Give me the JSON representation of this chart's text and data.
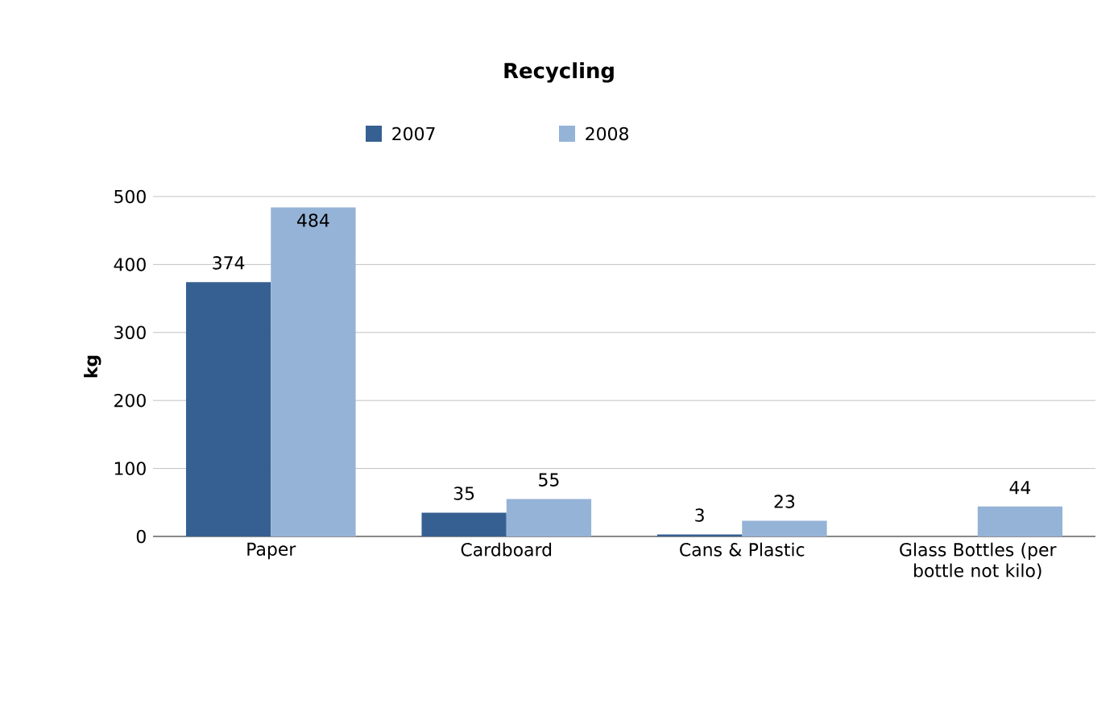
{
  "chart_data": {
    "type": "bar",
    "title": "Recycling",
    "ylabel": "kg",
    "categories": [
      "Paper",
      "Cardboard",
      "Cans & Plastic",
      "Glass Bottles (per bottle not kilo)"
    ],
    "series": [
      {
        "name": "2007",
        "color": "#376092",
        "values": [
          374,
          35,
          3,
          null
        ]
      },
      {
        "name": "2008",
        "color": "#95b3d7",
        "values": [
          484,
          55,
          23,
          44
        ]
      }
    ],
    "ylim": [
      0,
      500
    ],
    "yticks": [
      0,
      100,
      200,
      300,
      400,
      500
    ],
    "grid": "y",
    "legend": "top",
    "data_labels": true
  }
}
